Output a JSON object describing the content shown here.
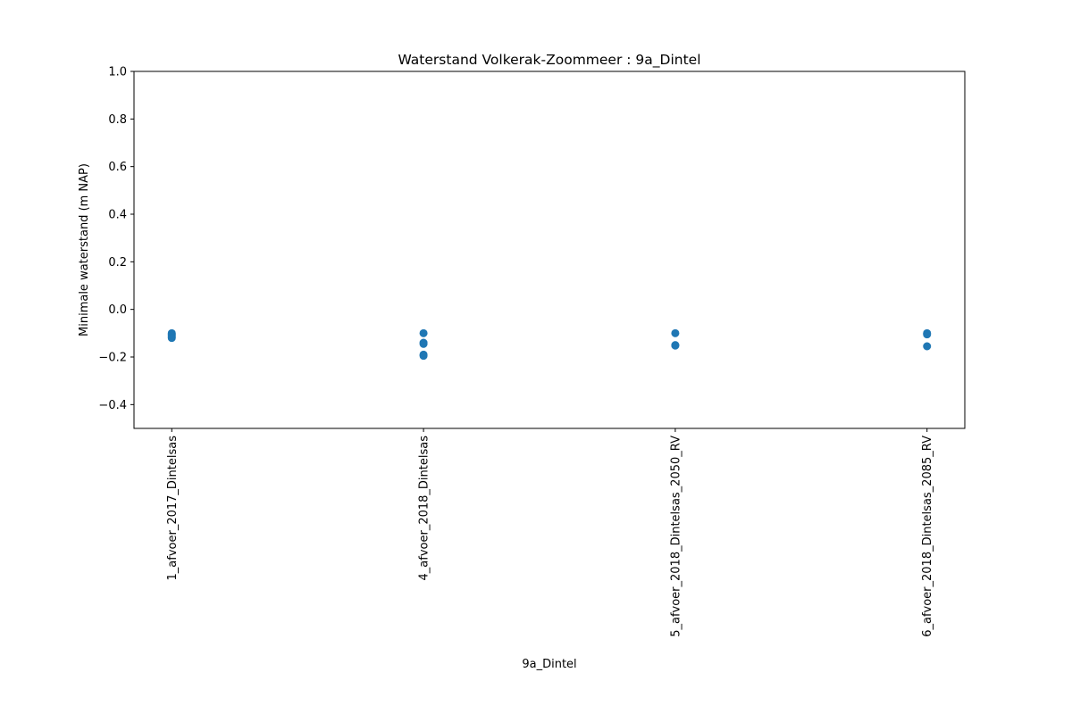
{
  "chart_data": {
    "type": "scatter",
    "title": "Waterstand Volkerak-Zoommeer : 9a_Dintel",
    "xlabel": "9a_Dintel",
    "ylabel": "Minimale waterstand (m NAP)",
    "ylim": [
      -0.5,
      1.0
    ],
    "yticks": [
      -0.4,
      -0.2,
      0.0,
      0.2,
      0.4,
      0.6,
      0.8,
      1.0
    ],
    "ytick_labels": [
      "−0.4",
      "−0.2",
      "0.0",
      "0.2",
      "0.4",
      "0.6",
      "0.8",
      "1.0"
    ],
    "categories": [
      "1_afvoer_2017_Dintelsas",
      "4_afvoer_2018_Dintelsas",
      "5_afvoer_2018_Dintelsas_2050_RV",
      "6_afvoer_2018_Dintelsas_2085_RV"
    ],
    "grid": false,
    "marker_color": "#1f77b4",
    "series": [
      {
        "points": [
          {
            "category": "1_afvoer_2017_Dintelsas",
            "y": -0.1
          },
          {
            "category": "1_afvoer_2017_Dintelsas",
            "y": -0.105
          },
          {
            "category": "1_afvoer_2017_Dintelsas",
            "y": -0.11
          },
          {
            "category": "1_afvoer_2017_Dintelsas",
            "y": -0.115
          },
          {
            "category": "1_afvoer_2017_Dintelsas",
            "y": -0.12
          },
          {
            "category": "4_afvoer_2018_Dintelsas",
            "y": -0.1
          },
          {
            "category": "4_afvoer_2018_Dintelsas",
            "y": -0.14
          },
          {
            "category": "4_afvoer_2018_Dintelsas",
            "y": -0.145
          },
          {
            "category": "4_afvoer_2018_Dintelsas",
            "y": -0.19
          },
          {
            "category": "4_afvoer_2018_Dintelsas",
            "y": -0.195
          },
          {
            "category": "5_afvoer_2018_Dintelsas_2050_RV",
            "y": -0.1
          },
          {
            "category": "5_afvoer_2018_Dintelsas_2050_RV",
            "y": -0.15
          },
          {
            "category": "5_afvoer_2018_Dintelsas_2050_RV",
            "y": -0.152
          },
          {
            "category": "6_afvoer_2018_Dintelsas_2085_RV",
            "y": -0.1
          },
          {
            "category": "6_afvoer_2018_Dintelsas_2085_RV",
            "y": -0.105
          },
          {
            "category": "6_afvoer_2018_Dintelsas_2085_RV",
            "y": -0.155
          }
        ]
      }
    ]
  }
}
